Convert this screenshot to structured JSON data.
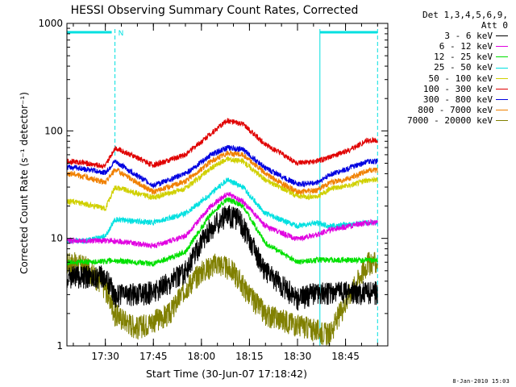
{
  "chart_data": {
    "type": "line",
    "title": "HESSI Observing Summary Count Rates, Corrected",
    "xlabel": "Start Time (30-Jun-07 17:18:42)",
    "ylabel": "Corrected Count Rate (s⁻¹ detector⁻¹)",
    "yscale": "log",
    "ylim": [
      1,
      1000
    ],
    "y_tick_labels": [
      "1",
      "10",
      "100",
      "1000"
    ],
    "xlim_minutes": [
      17.3,
      18.97
    ],
    "x_ticks": [
      "17:30",
      "17:45",
      "18:00",
      "18:15",
      "18:30",
      "18:45"
    ],
    "grid": false,
    "legend_placement": "right",
    "legend_header": [
      "Det 1,3,4,5,6,9,",
      "Att 0"
    ],
    "annotations": [
      {
        "text": "N",
        "near_time": "17:33"
      }
    ],
    "night_markers": [
      "17:33",
      "18:37",
      "18:55"
    ],
    "series": [
      {
        "name": "3 - 6 keV",
        "color": "#000000",
        "rough_profile": [
          [
            "17:30",
            4.5
          ],
          [
            "17:33",
            3.0
          ],
          [
            "17:45",
            3.2
          ],
          [
            "17:55",
            5.0
          ],
          [
            "18:02",
            12
          ],
          [
            "18:08",
            17
          ],
          [
            "18:12",
            15
          ],
          [
            "18:20",
            5.0
          ],
          [
            "18:30",
            2.8
          ],
          [
            "18:36",
            3.2
          ]
        ]
      },
      {
        "name": "6 - 12 keV",
        "color": "#e000e0",
        "rough_profile": [
          [
            "17:33",
            9.5
          ],
          [
            "17:45",
            8.5
          ],
          [
            "17:55",
            10.5
          ],
          [
            "18:03",
            20
          ],
          [
            "18:08",
            26
          ],
          [
            "18:13",
            22
          ],
          [
            "18:20",
            13
          ],
          [
            "18:30",
            9.8
          ],
          [
            "18:37",
            11
          ],
          [
            "18:40",
            12
          ],
          [
            "18:46",
            13
          ],
          [
            "18:52",
            14
          ]
        ]
      },
      {
        "name": "12 - 25 keV",
        "color": "#00e000",
        "rough_profile": [
          [
            "17:24",
            6.0
          ],
          [
            "17:33",
            6.2
          ],
          [
            "17:45",
            5.8
          ],
          [
            "17:55",
            7.5
          ],
          [
            "18:03",
            17
          ],
          [
            "18:08",
            23
          ],
          [
            "18:13",
            20
          ],
          [
            "18:20",
            9.0
          ],
          [
            "18:30",
            6.0
          ],
          [
            "18:36",
            6.3
          ]
        ]
      },
      {
        "name": "25 - 50 keV",
        "color": "#00e0e0",
        "rough_profile": [
          [
            "17:24",
            9.5
          ],
          [
            "17:30",
            10.5
          ],
          [
            "17:33",
            15
          ],
          [
            "17:45",
            14
          ],
          [
            "17:55",
            17
          ],
          [
            "18:03",
            26
          ],
          [
            "18:08",
            35
          ],
          [
            "18:13",
            30
          ],
          [
            "18:20",
            17
          ],
          [
            "18:30",
            13
          ],
          [
            "18:36",
            14
          ],
          [
            "18:40",
            13
          ],
          [
            "18:52",
            14
          ]
        ]
      },
      {
        "name": "50 - 100 keV",
        "color": "#d0d000",
        "rough_profile": [
          [
            "17:20",
            22
          ],
          [
            "17:30",
            19
          ],
          [
            "17:33",
            30
          ],
          [
            "17:45",
            24
          ],
          [
            "17:55",
            29
          ],
          [
            "18:03",
            45
          ],
          [
            "18:08",
            55
          ],
          [
            "18:13",
            52
          ],
          [
            "18:20",
            35
          ],
          [
            "18:30",
            25
          ],
          [
            "18:36",
            24
          ],
          [
            "18:40",
            29
          ],
          [
            "18:46",
            31
          ],
          [
            "18:52",
            35
          ]
        ]
      },
      {
        "name": "100 - 300 keV",
        "color": "#e00000",
        "rough_profile": [
          [
            "17:20",
            52
          ],
          [
            "17:30",
            47
          ],
          [
            "17:33",
            70
          ],
          [
            "17:45",
            48
          ],
          [
            "17:55",
            60
          ],
          [
            "18:03",
            95
          ],
          [
            "18:08",
            125
          ],
          [
            "18:13",
            115
          ],
          [
            "18:20",
            75
          ],
          [
            "18:30",
            50
          ],
          [
            "18:36",
            52
          ],
          [
            "18:40",
            57
          ],
          [
            "18:46",
            66
          ],
          [
            "18:52",
            82
          ]
        ]
      },
      {
        "name": "300 - 800 keV",
        "color": "#0000e0",
        "rough_profile": [
          [
            "17:20",
            46
          ],
          [
            "17:30",
            41
          ],
          [
            "17:33",
            52
          ],
          [
            "17:45",
            31
          ],
          [
            "17:55",
            40
          ],
          [
            "18:03",
            60
          ],
          [
            "18:08",
            70
          ],
          [
            "18:13",
            67
          ],
          [
            "18:20",
            45
          ],
          [
            "18:30",
            32
          ],
          [
            "18:36",
            33
          ],
          [
            "18:40",
            39
          ],
          [
            "18:46",
            45
          ],
          [
            "18:52",
            52
          ]
        ]
      },
      {
        "name": "800 - 7000 keV",
        "color": "#f08000",
        "rough_profile": [
          [
            "17:20",
            40
          ],
          [
            "17:30",
            33
          ],
          [
            "17:33",
            44
          ],
          [
            "17:45",
            27
          ],
          [
            "17:55",
            34
          ],
          [
            "18:03",
            52
          ],
          [
            "18:08",
            62
          ],
          [
            "18:13",
            60
          ],
          [
            "18:20",
            40
          ],
          [
            "18:30",
            27
          ],
          [
            "18:36",
            28
          ],
          [
            "18:40",
            33
          ],
          [
            "18:46",
            36
          ],
          [
            "18:52",
            43
          ]
        ]
      },
      {
        "name": "7000 - 20000 keV",
        "color": "#808000",
        "rough_profile": [
          [
            "17:20",
            6.0
          ],
          [
            "17:24",
            5.5
          ],
          [
            "17:30",
            3.5
          ],
          [
            "17:33",
            2.0
          ],
          [
            "17:40",
            1.5
          ],
          [
            "17:50",
            2.0
          ],
          [
            "17:55",
            3.5
          ],
          [
            "18:00",
            5.0
          ],
          [
            "18:05",
            6.0
          ],
          [
            "18:10",
            5.0
          ],
          [
            "18:15",
            3.0
          ],
          [
            "18:20",
            2.0
          ],
          [
            "18:30",
            1.6
          ],
          [
            "18:40",
            1.3
          ],
          [
            "18:46",
            3.0
          ],
          [
            "18:52",
            6.0
          ]
        ]
      }
    ]
  },
  "legend": {
    "header_line1": "Det 1,3,4,5,6,9,",
    "header_line2": "Att 0"
  },
  "footer": {
    "date": "8-Jan-2010 15:03"
  }
}
